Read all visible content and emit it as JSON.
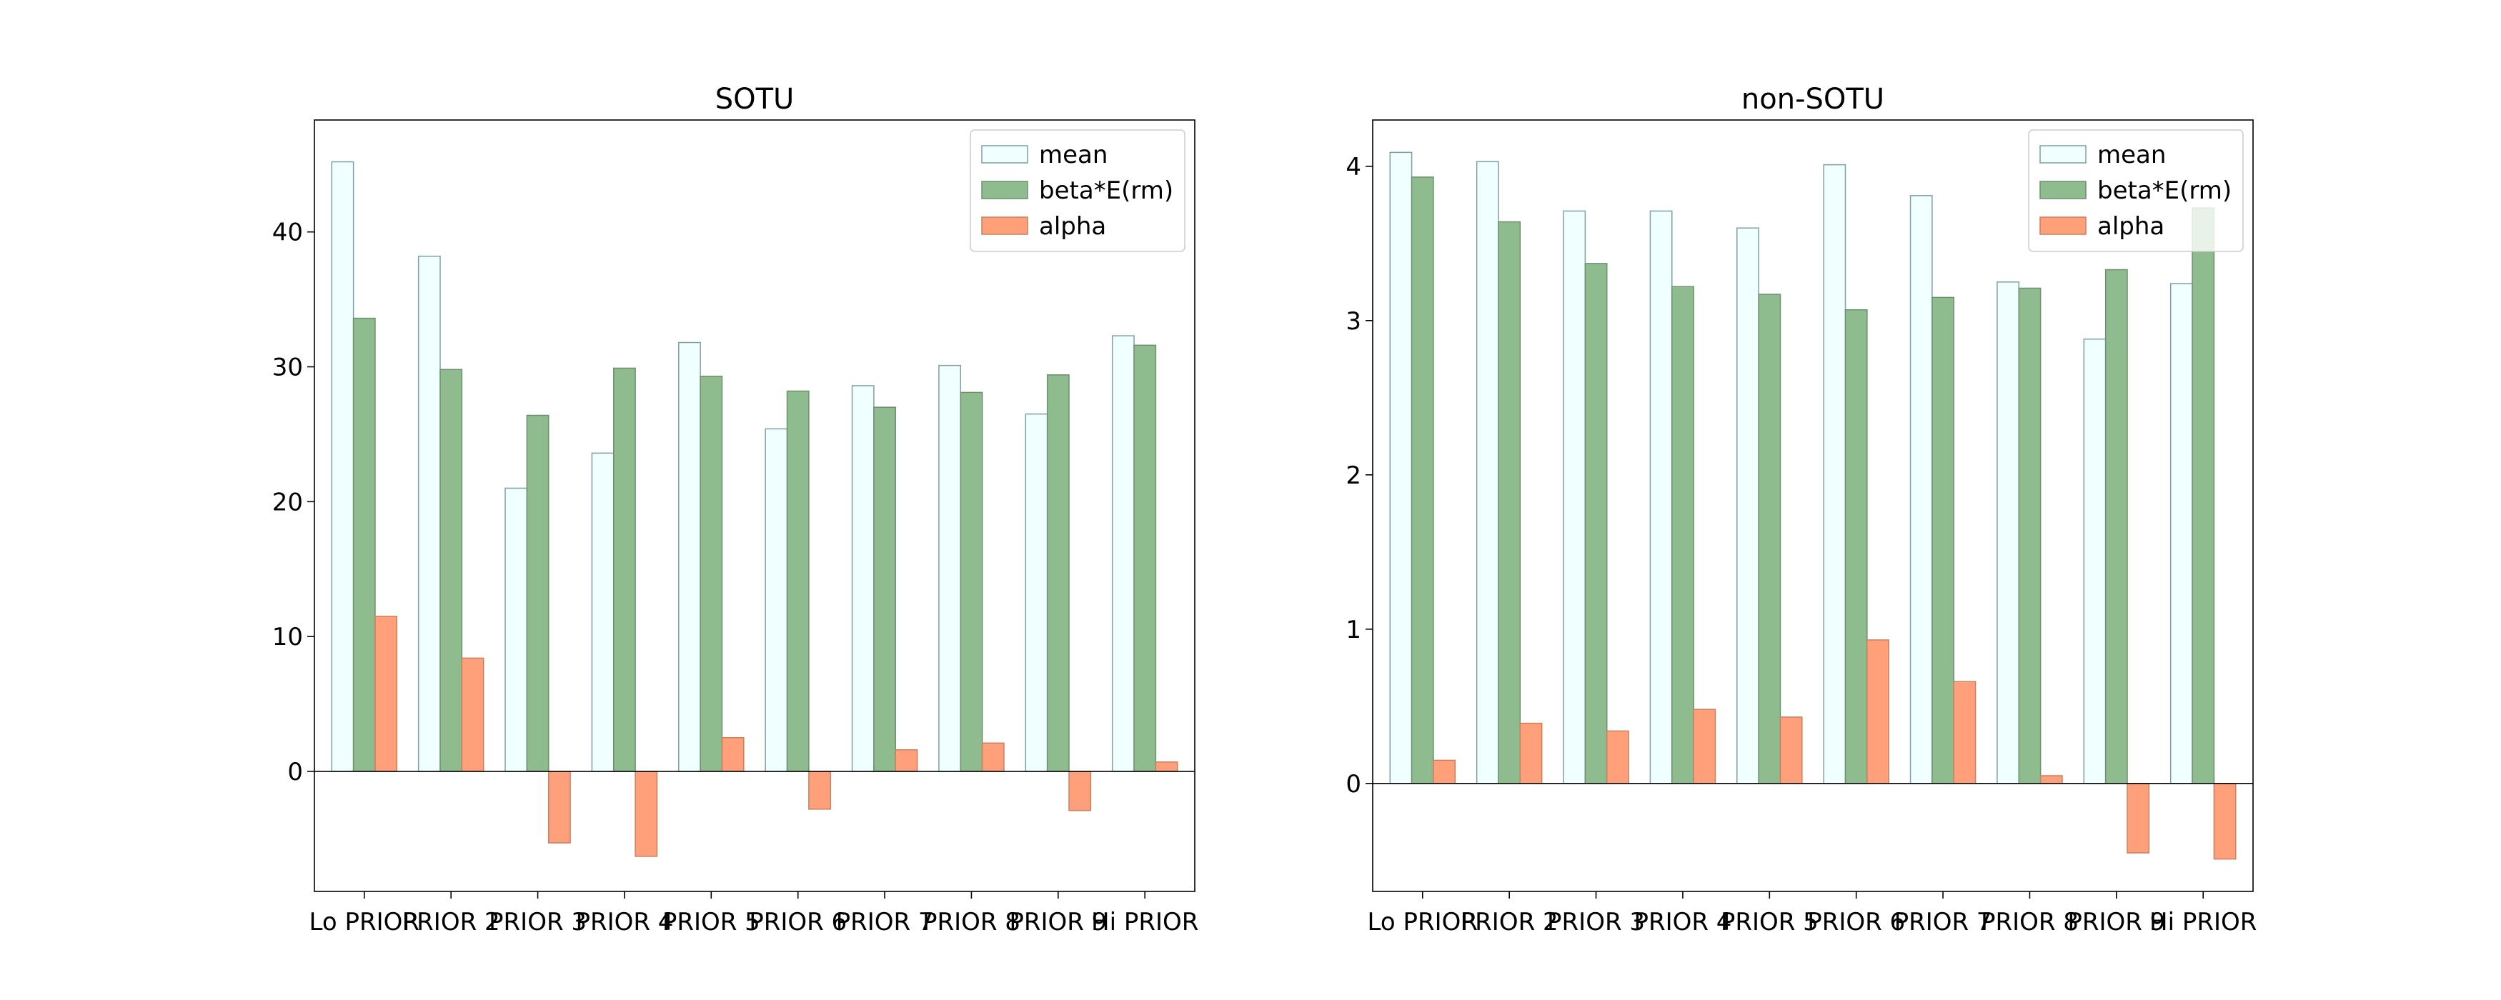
{
  "chart_data": [
    {
      "type": "bar",
      "title": "SOTU",
      "categories": [
        "Lo PRIOR",
        "PRIOR 2",
        "PRIOR 3",
        "PRIOR 4",
        "PRIOR 5",
        "PRIOR 6",
        "PRIOR 7",
        "PRIOR 8",
        "PRIOR 9",
        "Hi PRIOR"
      ],
      "series": [
        {
          "name": "mean",
          "values": [
            45.2,
            38.2,
            21.0,
            23.6,
            31.8,
            25.4,
            28.6,
            30.1,
            26.5,
            32.3
          ],
          "color": "#f0ffff",
          "edge": "#7f9fa6"
        },
        {
          "name": "beta*E(rm)",
          "values": [
            33.6,
            29.8,
            26.4,
            29.9,
            29.3,
            28.2,
            27.0,
            28.1,
            29.4,
            31.6
          ],
          "color": "#8fbc8f",
          "edge": "#6e8f6e"
        },
        {
          "name": "alpha",
          "values": [
            11.5,
            8.4,
            -5.3,
            -6.3,
            2.5,
            -2.8,
            1.6,
            2.1,
            -2.9,
            0.7
          ],
          "color": "#ffa07a",
          "edge": "#c88060"
        }
      ],
      "yticks": [
        0,
        10,
        20,
        30,
        40
      ],
      "ylim": [
        -8.9,
        48.3
      ],
      "xlabel": "",
      "ylabel": "",
      "legend": "top-right",
      "grid": false
    },
    {
      "type": "bar",
      "title": "non-SOTU",
      "categories": [
        "Lo PRIOR",
        "PRIOR 2",
        "PRIOR 3",
        "PRIOR 4",
        "PRIOR 5",
        "PRIOR 6",
        "PRIOR 7",
        "PRIOR 8",
        "PRIOR 9",
        "Hi PRIOR"
      ],
      "series": [
        {
          "name": "mean",
          "values": [
            4.09,
            4.03,
            3.71,
            3.71,
            3.6,
            4.01,
            3.81,
            3.25,
            2.88,
            3.24
          ],
          "color": "#f0ffff",
          "edge": "#7f9fa6"
        },
        {
          "name": "beta*E(rm)",
          "values": [
            3.93,
            3.64,
            3.37,
            3.22,
            3.17,
            3.07,
            3.15,
            3.21,
            3.33,
            3.73
          ],
          "color": "#8fbc8f",
          "edge": "#6e8f6e"
        },
        {
          "name": "alpha",
          "values": [
            0.15,
            0.39,
            0.34,
            0.48,
            0.43,
            0.93,
            0.66,
            0.05,
            -0.45,
            -0.49
          ],
          "color": "#ffa07a",
          "edge": "#c88060"
        }
      ],
      "yticks": [
        0,
        1,
        2,
        3,
        4
      ],
      "ylim": [
        -0.7,
        4.3
      ],
      "xlabel": "",
      "ylabel": "",
      "legend": "top-right",
      "grid": false
    }
  ]
}
